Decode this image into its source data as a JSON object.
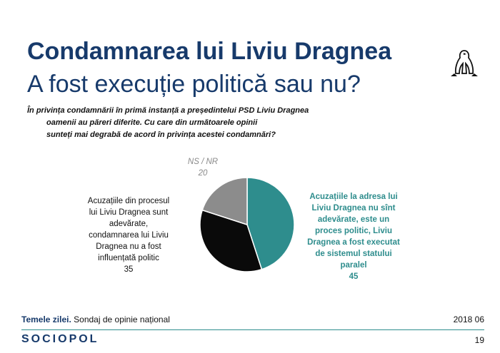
{
  "slide": {
    "title_line1": "Condamnarea lui Liviu Dragnea",
    "title_line2": "A fost execuție politică sau nu?",
    "question": [
      "În privința condamnării în primă instanță a președintelui PSD Liviu Dragnea",
      "oamenii au păreri diferite. Cu care din următoarele opinii",
      "sunteți mai degrabă de acord în privința acestei condamnări?"
    ]
  },
  "chart_data": {
    "type": "pie",
    "slices": [
      {
        "label_lines": [
          "Acuzațiile la adresa lui",
          "Liviu Dragnea nu sînt",
          "adevărate, este un",
          "proces politic, Liviu",
          "Dragnea a fost executat",
          "de sistemul statului",
          "paralel"
        ],
        "value": 45,
        "color": "#2e8d8d"
      },
      {
        "label_lines": [
          "Acuzațiile din procesul",
          "lui Liviu Dragnea sunt",
          "adevărate,",
          "condamnarea lui Liviu",
          "Dragnea nu a fost",
          "influențată politic"
        ],
        "value": 35,
        "color": "#0a0a0a"
      },
      {
        "label_lines": [
          "NS / NR"
        ],
        "value": 20,
        "color": "#8c8c8c"
      }
    ],
    "start_angle_deg": 0,
    "direction": "clockwise",
    "value_labels": [
      "45",
      "35",
      "20"
    ]
  },
  "footer": {
    "source_bold": "Temele zilei.",
    "source_rest": " Sondaj de opinie național",
    "date": "2018 06",
    "brand": "SOCIOPOL",
    "page": "19"
  },
  "icons": {
    "logo": "penguin-logo-icon"
  }
}
